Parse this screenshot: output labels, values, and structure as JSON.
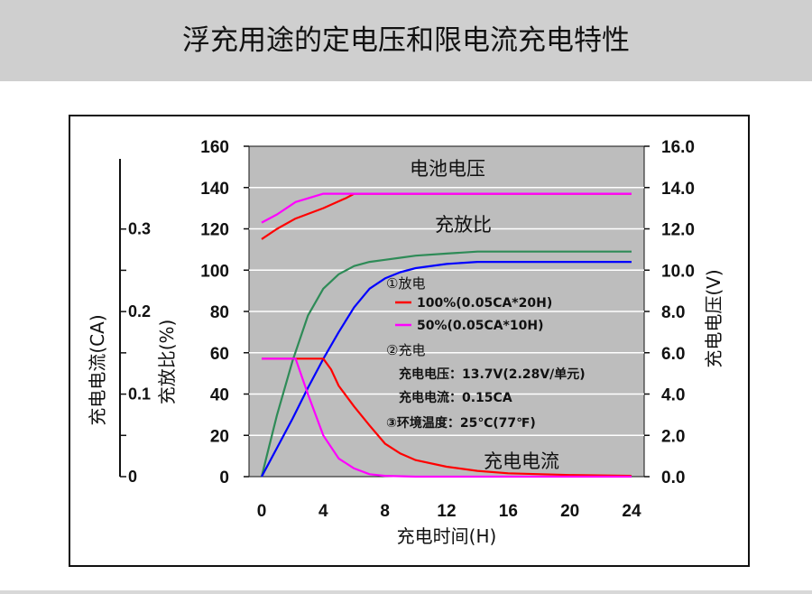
{
  "header": {
    "title": "浮充用途的定电压和限电流充电特性"
  },
  "chart_data": {
    "type": "line",
    "xlabel": "充电时间(H)",
    "xlim": [
      0,
      24
    ],
    "x_ticks": [
      "0",
      "4",
      "8",
      "12",
      "16",
      "20",
      "24"
    ],
    "y_left_label": "充放比(%)",
    "y_left_lim": [
      0,
      160
    ],
    "y_left_ticks": [
      "0",
      "20",
      "40",
      "60",
      "80",
      "100",
      "120",
      "140",
      "160"
    ],
    "y_current_label": "充电电流(CA)",
    "y_current_lim": [
      0,
      0.35
    ],
    "y_current_ticks": [
      "0",
      "0.1",
      "0.2",
      "0.3"
    ],
    "y_right_label": "充电电压(V)",
    "y_right_lim": [
      0,
      16
    ],
    "y_right_ticks": [
      "0.0",
      "2.0",
      "4.0",
      "6.0",
      "8.0",
      "10.0",
      "12.0",
      "14.0",
      "16.0"
    ],
    "grid": true,
    "annotations": {
      "battery_voltage": "电池电压",
      "charge_ratio": "充放比",
      "charge_current": "充电电流"
    },
    "legend": {
      "discharge_title": "①放电",
      "d100": "100%(0.05CA*20H)",
      "d50": "50%(0.05CA*10H)",
      "charge_title": "②充电",
      "charge_voltage": "充电电压：13.7V(2.28V/单元)",
      "charge_current": "充电电流：0.15CA",
      "ambient": "③环境温度：25℃(77℉)"
    },
    "series": [
      {
        "group": "voltage",
        "axis": "right",
        "color": "#ff0000",
        "x": [
          0,
          1,
          2.2,
          4,
          5.5,
          6,
          8,
          12,
          16,
          20,
          24
        ],
        "y": [
          11.5,
          12.0,
          12.5,
          13.0,
          13.5,
          13.7,
          13.7,
          13.7,
          13.7,
          13.7,
          13.7
        ]
      },
      {
        "group": "voltage",
        "axis": "right",
        "color": "#ff00ff",
        "x": [
          0,
          1,
          2.2,
          4,
          5,
          6,
          8,
          12,
          16,
          20,
          24
        ],
        "y": [
          12.3,
          12.7,
          13.3,
          13.7,
          13.7,
          13.7,
          13.7,
          13.7,
          13.7,
          13.7,
          13.7
        ]
      },
      {
        "group": "ratio",
        "axis": "left",
        "color": "#2e8b57",
        "x": [
          0,
          0.5,
          1,
          2,
          3,
          4,
          5,
          6,
          7,
          8,
          9,
          10,
          12,
          14,
          16,
          20,
          24
        ],
        "y": [
          0,
          15,
          30,
          56,
          78,
          91,
          98,
          102,
          104,
          105,
          106,
          107,
          108,
          109,
          109,
          109,
          109
        ]
      },
      {
        "group": "ratio",
        "axis": "left",
        "color": "#0000ff",
        "x": [
          0,
          1,
          2,
          3,
          4,
          5,
          6,
          7,
          8,
          9,
          10,
          12,
          14,
          16,
          20,
          24
        ],
        "y": [
          0,
          14,
          28,
          43,
          57,
          70,
          82,
          91,
          96,
          99,
          101,
          103,
          104,
          104,
          104,
          104
        ]
      },
      {
        "group": "current",
        "axis": "current",
        "color": "#ff0000",
        "x": [
          0,
          1,
          2,
          3,
          4,
          4.5,
          5,
          6,
          7,
          8,
          9,
          10,
          12,
          14,
          16,
          20,
          24
        ],
        "y": [
          0.143,
          0.143,
          0.143,
          0.143,
          0.143,
          0.13,
          0.11,
          0.085,
          0.062,
          0.04,
          0.028,
          0.02,
          0.012,
          0.007,
          0.004,
          0.002,
          0.001
        ]
      },
      {
        "group": "current",
        "axis": "current",
        "color": "#ff00ff",
        "x": [
          0,
          1,
          2,
          2.2,
          3,
          4,
          5,
          6,
          7,
          8,
          10,
          12,
          16,
          20,
          24
        ],
        "y": [
          0.143,
          0.143,
          0.143,
          0.143,
          0.1,
          0.05,
          0.022,
          0.01,
          0.003,
          0.001,
          0,
          0,
          0,
          0,
          0
        ]
      }
    ]
  }
}
